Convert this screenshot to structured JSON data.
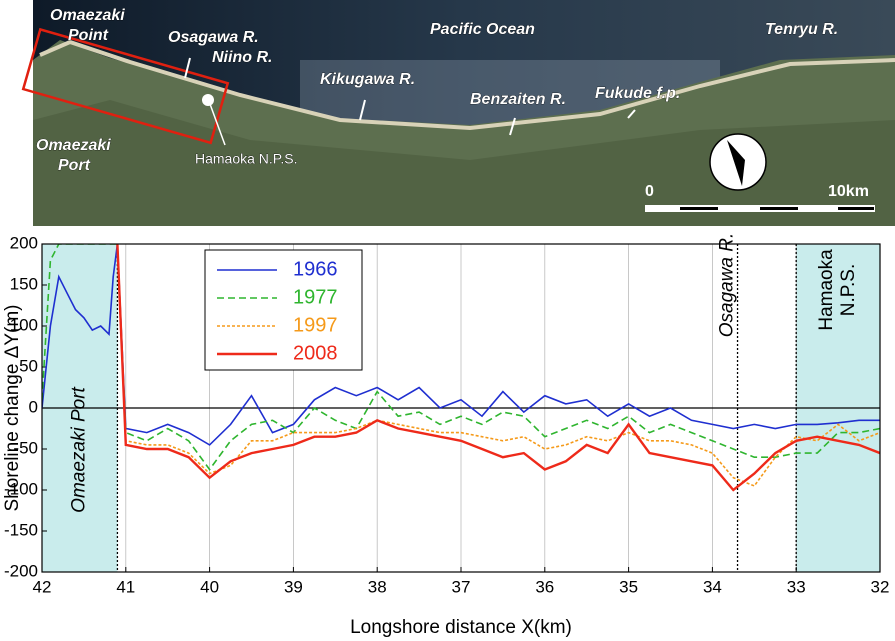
{
  "map": {
    "labels": [
      [
        "Omaezaki",
        "Point"
      ],
      [
        "Osagawa R."
      ],
      [
        "Niino R."
      ],
      [
        "Pacific Ocean"
      ],
      [
        "Tenryu R."
      ],
      [
        "Kikugawa R."
      ],
      [
        "Benzaiten R."
      ],
      [
        "Fukude f.p."
      ],
      [
        "Omaezaki",
        "Port"
      ],
      [
        "Hamaoka N.P.S."
      ]
    ],
    "scale": [
      "0",
      "10km"
    ]
  },
  "chart_data": {
    "type": "line",
    "xlabel": "Longshore distance X(km)",
    "ylabel": "Shoreline change ΔY(m)",
    "xlim": [
      42,
      32
    ],
    "ylim": [
      -200,
      200
    ],
    "xticks": [
      42,
      41,
      40,
      39,
      38,
      37,
      36,
      35,
      34,
      33,
      32
    ],
    "yticks": [
      -200,
      -150,
      -100,
      -50,
      0,
      50,
      100,
      150,
      200
    ],
    "grid": true,
    "legend_position": "upper left",
    "regions": [
      {
        "from": 42,
        "to": 41.1,
        "label": [
          "Omaezaki Port"
        ],
        "color": "#c9ecec"
      },
      {
        "from": 33,
        "to": 32,
        "label": [
          "Hamaoka",
          "N.P.S."
        ],
        "color": "#c9ecec"
      }
    ],
    "vlines": [
      {
        "x": 41.1
      },
      {
        "x": 33.7,
        "label": "Osagawa R."
      },
      {
        "x": 33.0
      }
    ],
    "x": [
      42,
      41.9,
      41.8,
      41.7,
      41.6,
      41.5,
      41.4,
      41.3,
      41.2,
      41.15,
      41.1,
      41.0,
      40.75,
      40.5,
      40.25,
      40.0,
      39.75,
      39.5,
      39.25,
      39.0,
      38.75,
      38.5,
      38.25,
      38.0,
      37.75,
      37.5,
      37.25,
      37.0,
      36.75,
      36.5,
      36.25,
      36.0,
      35.75,
      35.5,
      35.25,
      35.0,
      34.75,
      34.5,
      34.25,
      34.0,
      33.75,
      33.5,
      33.25,
      33.0,
      32.75,
      32.5,
      32.25,
      32.0
    ],
    "series": [
      {
        "name": "1966",
        "color": "#1f2fd0",
        "dash": "",
        "values": [
          0,
          100,
          160,
          140,
          120,
          110,
          95,
          100,
          90,
          160,
          200,
          -25,
          -30,
          -20,
          -30,
          -45,
          -20,
          15,
          -30,
          -20,
          10,
          25,
          15,
          25,
          10,
          25,
          0,
          10,
          -10,
          20,
          -5,
          15,
          5,
          10,
          -10,
          5,
          -10,
          0,
          -15,
          -20,
          -25,
          -20,
          -25,
          -20,
          -20,
          -18,
          -15,
          -15
        ]
      },
      {
        "name": "1977",
        "color": "#2fb52f",
        "dash": "7 4",
        "values": [
          10,
          180,
          200,
          200,
          200,
          200,
          200,
          200,
          200,
          200,
          200,
          -30,
          -40,
          -25,
          -40,
          -75,
          -40,
          -20,
          -15,
          -30,
          0,
          -15,
          -25,
          20,
          -10,
          -5,
          -20,
          -10,
          -20,
          -5,
          -10,
          -35,
          -25,
          -15,
          -25,
          -10,
          -30,
          -20,
          -30,
          -40,
          -50,
          -60,
          -60,
          -55,
          -55,
          -30,
          -30,
          -25
        ]
      },
      {
        "name": "1997",
        "color": "#f59a1a",
        "dash": "3 2",
        "values": [
          null,
          null,
          null,
          null,
          null,
          null,
          null,
          null,
          null,
          null,
          200,
          -40,
          -45,
          -45,
          -55,
          -80,
          -70,
          -40,
          -40,
          -30,
          -30,
          -30,
          -25,
          -15,
          -20,
          -25,
          -30,
          -30,
          -35,
          -40,
          -35,
          -50,
          -45,
          -35,
          -40,
          -30,
          -40,
          -40,
          -45,
          -55,
          -85,
          -95,
          -60,
          -35,
          -40,
          -20,
          -40,
          -30
        ]
      },
      {
        "name": "2008",
        "color": "#ee2a1a",
        "dash": "",
        "values": [
          null,
          null,
          null,
          null,
          null,
          null,
          null,
          null,
          null,
          null,
          200,
          -45,
          -50,
          -50,
          -60,
          -85,
          -65,
          -55,
          -50,
          -45,
          -35,
          -35,
          -30,
          -15,
          -25,
          -30,
          -35,
          -40,
          -50,
          -60,
          -55,
          -75,
          -65,
          -45,
          -55,
          -20,
          -55,
          -60,
          -65,
          -70,
          -100,
          -80,
          -55,
          -40,
          -35,
          -40,
          -45,
          -55
        ]
      }
    ]
  }
}
